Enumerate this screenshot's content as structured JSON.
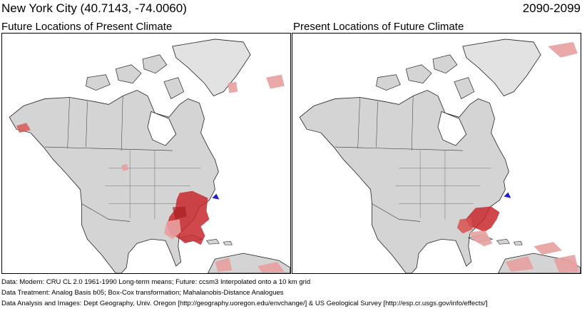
{
  "header": {
    "location": "New York City  (40.7143, -74.0060)",
    "period": "2090-2099"
  },
  "panels": [
    {
      "label": "Future Locations of Present Climate"
    },
    {
      "label": "Present Locations of Future Climate"
    }
  ],
  "legend_colors": {
    "land": "#d4d4d4",
    "water": "#ffffff",
    "analog_high": "#c8282c",
    "analog_low": "#e8a0a0",
    "target_marker": "#1e1ec8"
  },
  "footer": {
    "data_line": "Data:  Modern: CRU CL 2.0 1961-1990 Long-term means; Future: ccsm3 Interpolated onto a 10 km grid",
    "treatment_line": "Data Treatment:  Analog Basis b05; Box-Cox transformation; Mahalanobis-Distance Analogues",
    "credits_line": "Data Analysis and Images:  Dept Geography, Univ. Oregon [http://geography.uoregon.edu/envchange/] & US Geological Survey [http://esp.cr.usgs.gov/info/effects/]"
  }
}
